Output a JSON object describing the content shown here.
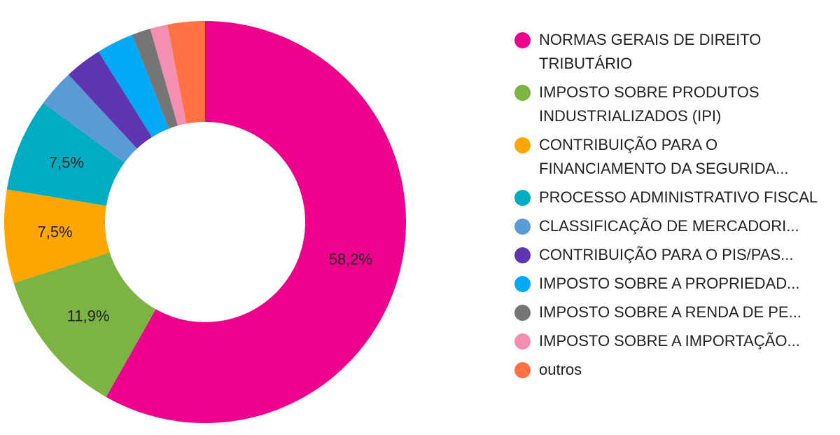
{
  "chart_data": {
    "type": "donut",
    "categories": [
      "NORMAS GERAIS DE DIREITO TRIBUTÁRIO",
      "IMPOSTO SOBRE PRODUTOS INDUSTRIALIZADOS (IPI)",
      "CONTRIBUIÇÃO PARA O FINANCIAMENTO DA SEGURIDA...",
      "PROCESSO ADMINISTRATIVO FISCAL",
      "CLASSIFICAÇÃO DE MERCADORI...",
      "CONTRIBUIÇÃO PARA O PIS/PAS...",
      "IMPOSTO SOBRE A PROPRIEDAD...",
      "IMPOSTO SOBRE A RENDA DE PE...",
      "IMPOSTO SOBRE A IMPORTAÇÃO...",
      "outros"
    ],
    "values": [
      58.2,
      11.9,
      7.5,
      7.5,
      3.0,
      3.0,
      3.0,
      1.5,
      1.4,
      3.0
    ],
    "value_labels": [
      "58,2%",
      "11,9%",
      "7,5%",
      "7,5%",
      null,
      null,
      null,
      null,
      null,
      null
    ],
    "colors": [
      "#ec008c",
      "#7cb342",
      "#ffa600",
      "#00acc1",
      "#5b9bd5",
      "#5e35b1",
      "#03a9f4",
      "#757575",
      "#f48fb1",
      "#ff7043"
    ],
    "legend": "right"
  }
}
